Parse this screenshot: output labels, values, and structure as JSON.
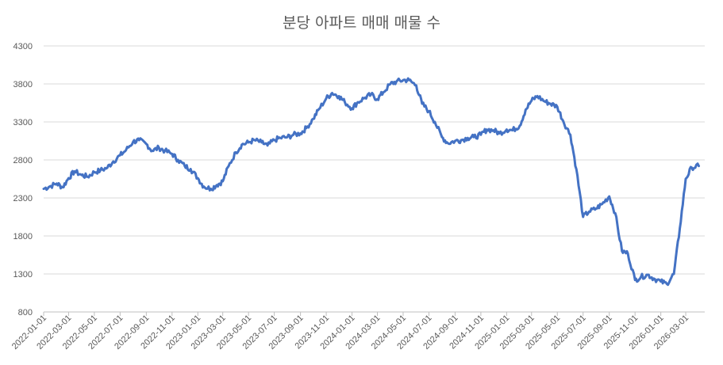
{
  "chart_data": {
    "type": "line",
    "title": "분당 아파트 매매 매물 수",
    "xlabel": "",
    "ylabel": "",
    "ylim": [
      800,
      4300
    ],
    "yticks": [
      800,
      1300,
      1800,
      2300,
      2800,
      3300,
      3800,
      4300
    ],
    "xticks": [
      "2022-01-01",
      "2022-03-01",
      "2022-05-01",
      "2022-07-01",
      "2022-09-01",
      "2022-11-01",
      "2023-01-01",
      "2023-03-01",
      "2023-05-01",
      "2023-07-01",
      "2023-09-01",
      "2023-11-01",
      "2024-01-01",
      "2024-03-01",
      "2024-05-01",
      "2024-07-01",
      "2024-09-01",
      "2024-11-01",
      "2025-01-01",
      "2025-03-01",
      "2025-05-01",
      "2025-07-01",
      "2025-09-01",
      "2025-11-01",
      "2026-01-01",
      "2026-03-01"
    ],
    "grid": true,
    "legend": "none",
    "line_color": "#4472C4",
    "series": [
      {
        "x": [
          "2022-01-01",
          "2022-01-15",
          "2022-02-01",
          "2022-02-15",
          "2022-03-01",
          "2022-03-15",
          "2022-04-01",
          "2022-04-15",
          "2022-05-01",
          "2022-05-15",
          "2022-06-01",
          "2022-06-15",
          "2022-07-01",
          "2022-07-15",
          "2022-08-01",
          "2022-08-15",
          "2022-09-01",
          "2022-09-15",
          "2022-10-01",
          "2022-10-15",
          "2022-11-01",
          "2022-11-15",
          "2022-12-01",
          "2022-12-15",
          "2023-01-01",
          "2023-01-15",
          "2023-02-01",
          "2023-02-15",
          "2023-03-01",
          "2023-03-15",
          "2023-04-01",
          "2023-04-15",
          "2023-05-01",
          "2023-05-15",
          "2023-06-01",
          "2023-06-15",
          "2023-07-01",
          "2023-07-15",
          "2023-08-01",
          "2023-08-15",
          "2023-09-01",
          "2023-09-15",
          "2023-10-01",
          "2023-10-15",
          "2023-11-01",
          "2023-11-15",
          "2023-12-01",
          "2023-12-15",
          "2024-01-01",
          "2024-01-15",
          "2024-02-01",
          "2024-02-15",
          "2024-03-01",
          "2024-03-15",
          "2024-04-01",
          "2024-04-15",
          "2024-05-01",
          "2024-05-15",
          "2024-06-01",
          "2024-06-15",
          "2024-07-01",
          "2024-07-15",
          "2024-08-01",
          "2024-08-15",
          "2024-09-01",
          "2024-09-15",
          "2024-10-01",
          "2024-10-15",
          "2024-11-01",
          "2024-11-15",
          "2024-12-01",
          "2024-12-15",
          "2025-01-01",
          "2025-01-15",
          "2025-02-01",
          "2025-02-15",
          "2025-03-01",
          "2025-03-15",
          "2025-04-01",
          "2025-04-15",
          "2025-05-01",
          "2025-05-15",
          "2025-06-01",
          "2025-06-15",
          "2025-07-01",
          "2025-07-15",
          "2025-08-01",
          "2025-08-15",
          "2025-09-01",
          "2025-09-15",
          "2025-10-01",
          "2025-10-15",
          "2025-11-01",
          "2025-11-15",
          "2025-12-01",
          "2025-12-15",
          "2026-01-01",
          "2026-01-15",
          "2026-02-01",
          "2026-02-15",
          "2026-03-01",
          "2026-03-15",
          "2026-04-01"
        ],
        "values": [
          2420,
          2450,
          2490,
          2440,
          2560,
          2650,
          2600,
          2580,
          2640,
          2660,
          2700,
          2780,
          2860,
          2930,
          3040,
          3060,
          3010,
          2920,
          2960,
          2920,
          2880,
          2800,
          2720,
          2680,
          2560,
          2450,
          2420,
          2470,
          2520,
          2720,
          2900,
          3000,
          3030,
          3060,
          3030,
          2990,
          3060,
          3090,
          3100,
          3130,
          3150,
          3220,
          3340,
          3470,
          3610,
          3680,
          3640,
          3560,
          3480,
          3560,
          3620,
          3660,
          3600,
          3690,
          3800,
          3830,
          3850,
          3850,
          3780,
          3540,
          3440,
          3300,
          3100,
          3020,
          3050,
          3060,
          3090,
          3100,
          3130,
          3200,
          3190,
          3150,
          3200,
          3190,
          3250,
          3460,
          3580,
          3640,
          3570,
          3540,
          3500,
          3310,
          3130,
          2680,
          2050,
          2120,
          2160,
          2220,
          2320,
          2100,
          1600,
          1570,
          1220,
          1260,
          1290,
          1240,
          1200,
          1170,
          1300,
          1900,
          2550,
          2700,
          2720
        ]
      }
    ]
  }
}
